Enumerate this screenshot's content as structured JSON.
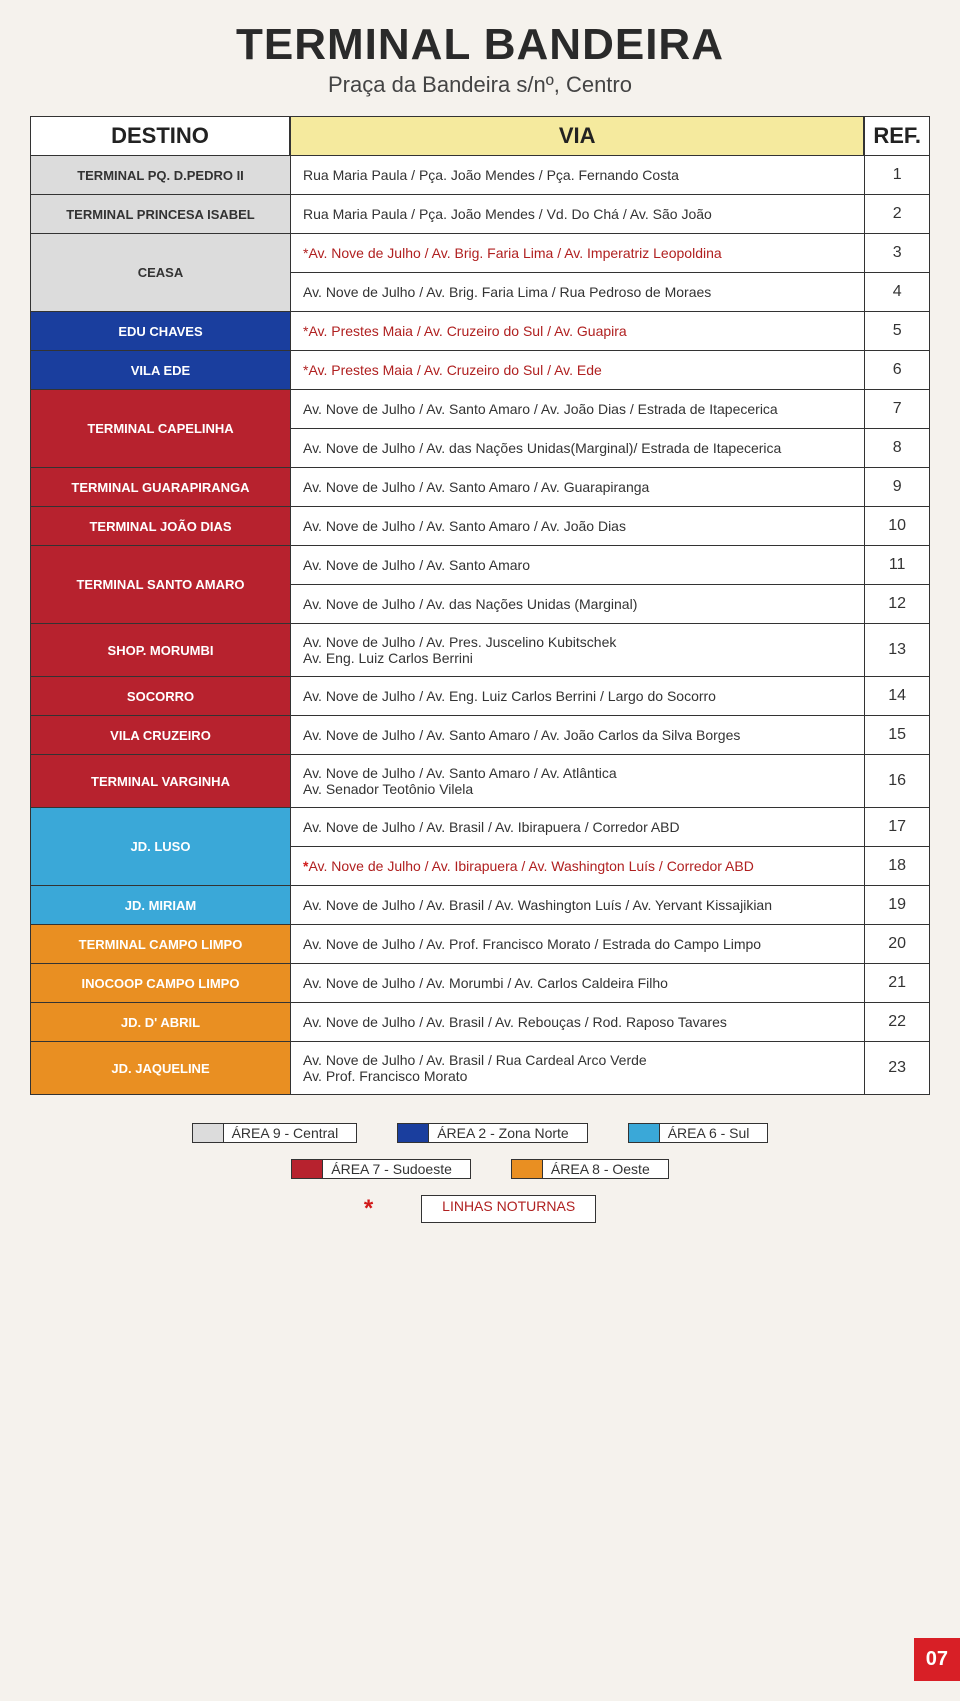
{
  "title": "TERMINAL BANDEIRA",
  "subtitle": "Praça da Bandeira s/nº, Centro",
  "headers": {
    "destino": "DESTINO",
    "via": "VIA",
    "ref": "REF."
  },
  "colors": {
    "area9": "#dcdcdc",
    "area2": "#1a3e9e",
    "area6": "#3aa8d8",
    "area7": "#b7222e",
    "area8": "#e98f22",
    "night_text": "#b02020",
    "page_num_bg": "#d81f26"
  },
  "rows": [
    {
      "dest": "TERMINAL PQ. D.PEDRO II",
      "area": "area9",
      "dark": true,
      "vias": [
        {
          "text": "Rua Maria Paula / Pça. João Mendes / Pça. Fernando Costa",
          "ref": "1"
        }
      ]
    },
    {
      "dest": "TERMINAL PRINCESA ISABEL",
      "area": "area9",
      "dark": true,
      "vias": [
        {
          "text": "Rua Maria Paula / Pça. João Mendes / Vd. Do Chá / Av. São João",
          "ref": "2"
        }
      ]
    },
    {
      "dest": "CEASA",
      "area": "area9",
      "dark": true,
      "vias": [
        {
          "text": "*Av. Nove de Julho / Av. Brig. Faria Lima / Av. Imperatriz Leopoldina",
          "ref": "3",
          "night": true
        },
        {
          "text": "Av. Nove de Julho / Av. Brig. Faria Lima / Rua Pedroso de Moraes",
          "ref": "4"
        }
      ]
    },
    {
      "dest": "EDU CHAVES",
      "area": "area2",
      "vias": [
        {
          "text": "*Av. Prestes Maia / Av. Cruzeiro do Sul / Av. Guapira",
          "ref": "5",
          "night": true
        }
      ]
    },
    {
      "dest": "VILA EDE",
      "area": "area2",
      "vias": [
        {
          "text": "*Av. Prestes Maia / Av. Cruzeiro do Sul / Av. Ede",
          "ref": "6",
          "night": true
        }
      ]
    },
    {
      "dest": "TERMINAL CAPELINHA",
      "area": "area7",
      "vias": [
        {
          "text": "Av. Nove de Julho / Av. Santo Amaro / Av. João Dias / Estrada de Itapecerica",
          "ref": "7"
        },
        {
          "text": "Av. Nove de Julho / Av. das Nações Unidas(Marginal)/ Estrada de Itapecerica",
          "ref": "8"
        }
      ]
    },
    {
      "dest": "TERMINAL GUARAPIRANGA",
      "area": "area7",
      "vias": [
        {
          "text": "Av. Nove de Julho / Av. Santo Amaro / Av. Guarapiranga",
          "ref": "9"
        }
      ]
    },
    {
      "dest": "TERMINAL JOÃO DIAS",
      "area": "area7",
      "vias": [
        {
          "text": "Av. Nove de Julho / Av. Santo Amaro / Av. João Dias",
          "ref": "10"
        }
      ]
    },
    {
      "dest": "TERMINAL SANTO AMARO",
      "area": "area7",
      "vias": [
        {
          "text": "Av. Nove de Julho / Av. Santo Amaro",
          "ref": "11"
        },
        {
          "text": "Av. Nove de Julho / Av. das Nações Unidas (Marginal)",
          "ref": "12"
        }
      ]
    },
    {
      "dest": "SHOP. MORUMBI",
      "area": "area7",
      "vias": [
        {
          "text": "Av. Nove de Julho / Av. Pres. Juscelino Kubitschek",
          "text2": "Av. Eng. Luiz Carlos Berrini",
          "ref": "13"
        }
      ]
    },
    {
      "dest": "SOCORRO",
      "area": "area7",
      "vias": [
        {
          "text": "Av. Nove de Julho / Av. Eng. Luiz Carlos Berrini / Largo do Socorro",
          "ref": "14"
        }
      ]
    },
    {
      "dest": "VILA CRUZEIRO",
      "area": "area7",
      "vias": [
        {
          "text": "Av. Nove de Julho / Av. Santo Amaro / Av. João Carlos da Silva Borges",
          "ref": "15"
        }
      ]
    },
    {
      "dest": "TERMINAL VARGINHA",
      "area": "area7",
      "vias": [
        {
          "text": "Av. Nove de Julho / Av. Santo Amaro / Av. Atlântica",
          "text2": "Av. Senador Teotônio Vilela",
          "ref": "16"
        }
      ]
    },
    {
      "dest": "JD. LUSO",
      "area": "area6",
      "vias": [
        {
          "text": "Av. Nove de Julho / Av. Brasil / Av. Ibirapuera / Corredor ABD",
          "ref": "17"
        },
        {
          "text": "Av. Nove de Julho / Av. Ibirapuera / Av. Washington Luís / Corredor ABD",
          "ref": "18",
          "night": true,
          "lead_star": true
        }
      ]
    },
    {
      "dest": "JD. MIRIAM",
      "area": "area6",
      "vias": [
        {
          "text": "Av. Nove de Julho / Av. Brasil / Av. Washington Luís / Av. Yervant Kissajikian",
          "ref": "19"
        }
      ]
    },
    {
      "dest": "TERMINAL CAMPO LIMPO",
      "area": "area8",
      "vias": [
        {
          "text": "Av. Nove de Julho / Av. Prof. Francisco Morato / Estrada do Campo Limpo",
          "ref": "20"
        }
      ]
    },
    {
      "dest": "INOCOOP CAMPO LIMPO",
      "area": "area8",
      "vias": [
        {
          "text": "Av. Nove de Julho / Av. Morumbi / Av. Carlos Caldeira Filho",
          "ref": "21"
        }
      ]
    },
    {
      "dest": "JD. D' ABRIL",
      "area": "area8",
      "vias": [
        {
          "text": "Av. Nove de Julho / Av. Brasil / Av. Rebouças / Rod. Raposo Tavares",
          "ref": "22"
        }
      ]
    },
    {
      "dest": "JD. JAQUELINE",
      "area": "area8",
      "vias": [
        {
          "text": "Av. Nove de Julho / Av. Brasil / Rua Cardeal Arco Verde",
          "text2": "Av. Prof. Francisco Morato",
          "ref": "23"
        }
      ]
    }
  ],
  "legend": {
    "row1": [
      {
        "swatch": "area9",
        "label": "ÁREA 9 - Central"
      },
      {
        "swatch": "area2",
        "label": "ÁREA 2 - Zona Norte"
      },
      {
        "swatch": "area6",
        "label": "ÁREA 6 - Sul"
      }
    ],
    "row2": [
      {
        "swatch": "area7",
        "label": "ÁREA 7 - Sudoeste"
      },
      {
        "swatch": "area8",
        "label": "ÁREA 8 - Oeste"
      }
    ],
    "night_label": "LINHAS NOTURNAS"
  },
  "page_number": "07"
}
